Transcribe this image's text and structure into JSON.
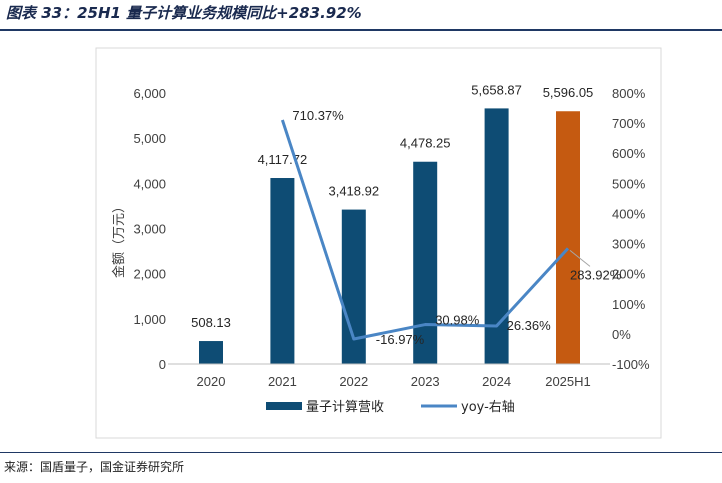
{
  "title": "图表 33：25H1 量子计算业务规模同比+283.92%",
  "source": "来源：国盾量子，国金证券研究所",
  "chart_data": {
    "type": "bar",
    "categories": [
      "2020",
      "2021",
      "2022",
      "2023",
      "2024",
      "2025H1"
    ],
    "series": [
      {
        "name": "量子计算营收",
        "type": "bar",
        "axis": "left",
        "values": [
          508.13,
          4117.72,
          3418.92,
          4478.25,
          5658.87,
          5596.05
        ],
        "labels": [
          "508.13",
          "4,117.72",
          "3,418.92",
          "4,478.25",
          "5,658.87",
          "5,596.05"
        ],
        "colors": [
          "#0e4c74",
          "#0e4c74",
          "#0e4c74",
          "#0e4c74",
          "#0e4c74",
          "#c55a11"
        ]
      },
      {
        "name": "yoy-右轴",
        "type": "line",
        "axis": "right",
        "values": [
          null,
          710.37,
          -16.97,
          30.98,
          26.36,
          283.92
        ],
        "labels": [
          "",
          "710.37%",
          "-16.97%",
          "30.98%",
          "26.36%",
          "283.92%"
        ],
        "color": "#4a86c5"
      }
    ],
    "ylabel": "金额（万元）",
    "ylim": [
      0,
      6000
    ],
    "yticks": [
      "0",
      "1,000",
      "2,000",
      "3,000",
      "4,000",
      "5,000",
      "6,000"
    ],
    "y2lim": [
      -100,
      800
    ],
    "y2ticks": [
      "-100%",
      "0%",
      "100%",
      "200%",
      "300%",
      "400%",
      "500%",
      "600%",
      "700%",
      "800%"
    ],
    "legend": "bottom"
  }
}
